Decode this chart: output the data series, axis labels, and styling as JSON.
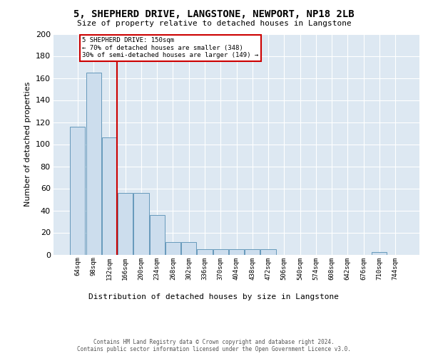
{
  "title": "5, SHEPHERD DRIVE, LANGSTONE, NEWPORT, NP18 2LB",
  "subtitle": "Size of property relative to detached houses in Langstone",
  "xlabel": "Distribution of detached houses by size in Langstone",
  "ylabel": "Number of detached properties",
  "bar_labels": [
    "64sqm",
    "98sqm",
    "132sqm",
    "166sqm",
    "200sqm",
    "234sqm",
    "268sqm",
    "302sqm",
    "336sqm",
    "370sqm",
    "404sqm",
    "438sqm",
    "472sqm",
    "506sqm",
    "540sqm",
    "574sqm",
    "608sqm",
    "642sqm",
    "676sqm",
    "710sqm",
    "744sqm"
  ],
  "bar_values": [
    116,
    165,
    106,
    56,
    56,
    36,
    11,
    11,
    5,
    5,
    5,
    5,
    5,
    0,
    0,
    0,
    0,
    0,
    0,
    2,
    0
  ],
  "bar_color": "#ccdded",
  "bar_edge_color": "#6699bb",
  "red_line_index": 2,
  "annotation_line1": "5 SHEPHERD DRIVE: 150sqm",
  "annotation_line2": "← 70% of detached houses are smaller (348)",
  "annotation_line3": "30% of semi-detached houses are larger (149) →",
  "ylim": [
    0,
    200
  ],
  "yticks": [
    0,
    20,
    40,
    60,
    80,
    100,
    120,
    140,
    160,
    180,
    200
  ],
  "background_color": "#dde8f2",
  "grid_color": "#ffffff",
  "footer_line1": "Contains HM Land Registry data © Crown copyright and database right 2024.",
  "footer_line2": "Contains public sector information licensed under the Open Government Licence v3.0."
}
